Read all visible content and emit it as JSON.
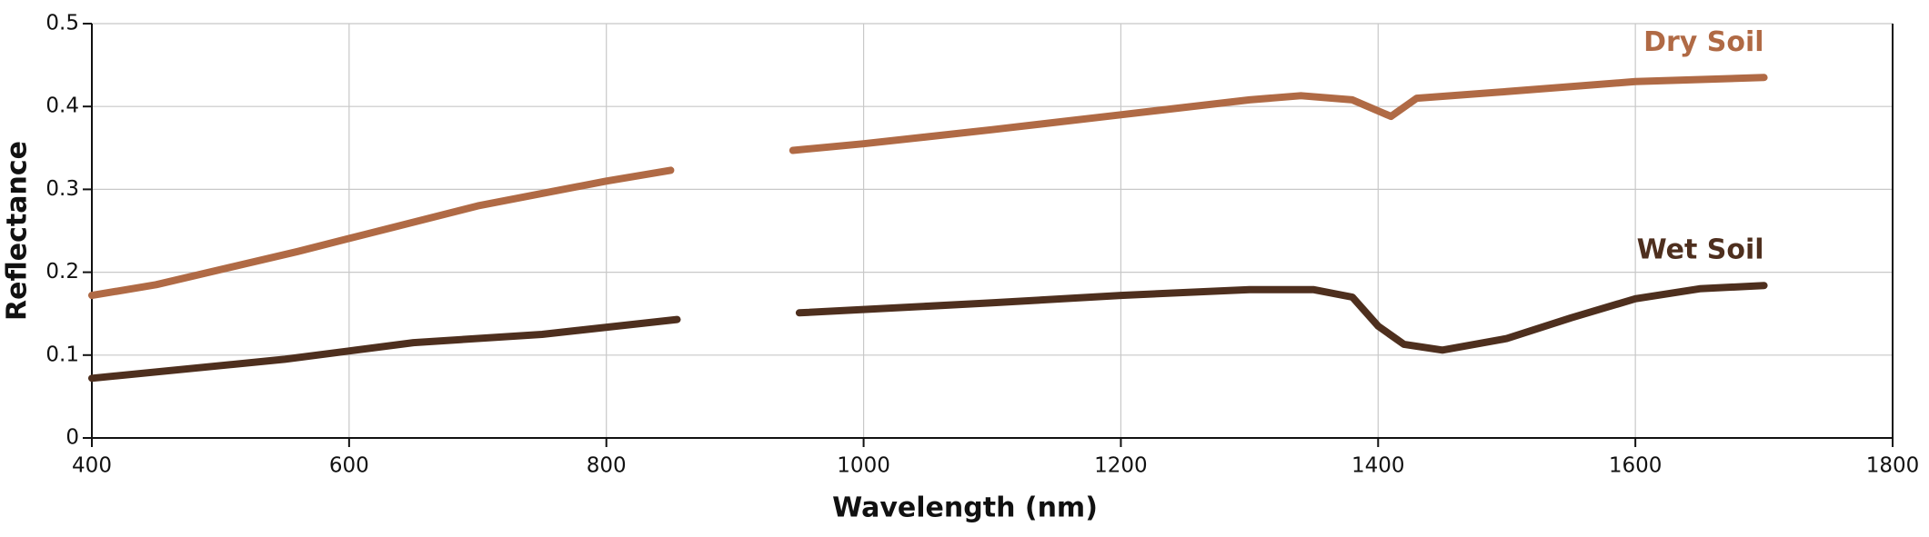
{
  "chart_data": {
    "type": "line",
    "x_label": "Wavelength (nm)",
    "y_label": "Reflectance",
    "xlim": [
      400,
      1800
    ],
    "xticks": [
      400,
      600,
      800,
      1000,
      1200,
      1400,
      1600,
      1800
    ],
    "ylim": [
      0,
      0.5
    ],
    "yticks": [
      0,
      0.1,
      0.2,
      0.3,
      0.4,
      0.5
    ],
    "grid": true,
    "series": [
      {
        "name": "Dry Soil",
        "color": "#b06a45",
        "x": [
          400,
          450,
          560,
          700,
          800,
          850,
          900,
          945,
          1000,
          1100,
          1200,
          1300,
          1340,
          1380,
          1410,
          1430,
          1500,
          1600,
          1700
        ],
        "values": [
          0.172,
          0.185,
          0.225,
          0.28,
          0.31,
          0.323,
          null,
          0.347,
          0.355,
          0.372,
          0.39,
          0.408,
          0.413,
          0.408,
          0.388,
          0.41,
          0.418,
          0.43,
          0.435
        ]
      },
      {
        "name": "Wet Soil",
        "color": "#4e2f1e",
        "x": [
          400,
          550,
          650,
          750,
          855,
          900,
          950,
          1100,
          1200,
          1300,
          1350,
          1380,
          1400,
          1420,
          1450,
          1500,
          1550,
          1600,
          1650,
          1700
        ],
        "values": [
          0.072,
          0.095,
          0.115,
          0.125,
          0.143,
          null,
          0.151,
          0.163,
          0.172,
          0.179,
          0.179,
          0.17,
          0.135,
          0.113,
          0.106,
          0.12,
          0.145,
          0.168,
          0.18,
          0.184
        ]
      }
    ]
  }
}
